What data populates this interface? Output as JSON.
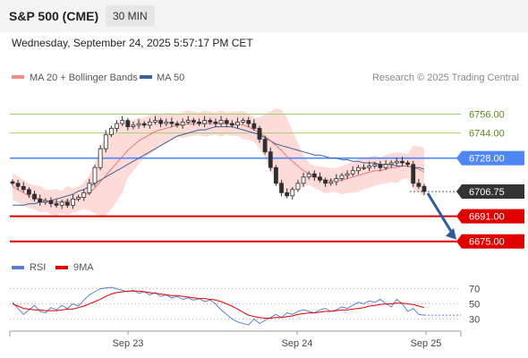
{
  "header": {
    "title": "S&P 500 (CME)",
    "timeframe": "30 MIN"
  },
  "timestamp": "Wednesday, September 24, 2025 5:57:17 PM CET",
  "legend": {
    "items": [
      {
        "label": "MA 20 + Bollinger Bands",
        "color": "#f28b82"
      },
      {
        "label": "MA 50",
        "color": "#3f5f9f"
      }
    ],
    "credit": "Research © 2025 Trading Central"
  },
  "rsi_legend": {
    "items": [
      {
        "label": "RSI",
        "color": "#5b7fd6"
      },
      {
        "label": "9MA",
        "color": "#e00000"
      }
    ]
  },
  "colors": {
    "resistance": "#a6cc6f",
    "pivot": "#4f86f7",
    "support": "#e00000",
    "arrow": "#2f5d9a",
    "candle": "#2f2f2f",
    "band_fill": "#fbd2d0"
  },
  "chart_data": [
    {
      "type": "line",
      "title": "",
      "x_ticks": [
        "Sep 23",
        "Sep 24",
        "Sep 25"
      ],
      "y_range": [
        6668,
        6766
      ],
      "levels": [
        {
          "value": 6756.0,
          "label": "6756.00",
          "kind": "resistance"
        },
        {
          "value": 6744.0,
          "label": "6744.00",
          "kind": "resistance"
        },
        {
          "value": 6728.0,
          "label": "6728.00",
          "kind": "pivot"
        },
        {
          "value": 6706.75,
          "label": "6706.75",
          "kind": "last"
        },
        {
          "value": 6691.0,
          "label": "6691.00",
          "kind": "support"
        },
        {
          "value": 6675.0,
          "label": "6675.00",
          "kind": "support"
        }
      ],
      "last_price": 6706.75,
      "forecast_target": 6675.0,
      "series": [
        {
          "name": "Price",
          "values": [
            6712,
            6710,
            6708,
            6705,
            6702,
            6700,
            6701,
            6699,
            6698,
            6700,
            6698,
            6702,
            6703,
            6706,
            6712,
            6722,
            6734,
            6743,
            6747,
            6750,
            6752,
            6748,
            6749,
            6750,
            6749,
            6751,
            6752,
            6750,
            6751,
            6750,
            6749,
            6751,
            6752,
            6751,
            6750,
            6752,
            6751,
            6750,
            6752,
            6750,
            6749,
            6751,
            6752,
            6750,
            6747,
            6740,
            6732,
            6722,
            6712,
            6706,
            6704,
            6708,
            6712,
            6716,
            6718,
            6716,
            6714,
            6712,
            6713,
            6715,
            6717,
            6718,
            6720,
            6722,
            6722,
            6723,
            6724,
            6722,
            6724,
            6725,
            6726,
            6725,
            6724,
            6712,
            6710,
            6706.75
          ]
        },
        {
          "name": "MA 20",
          "values": [
            6710,
            6708,
            6706,
            6704,
            6703,
            6702,
            6701,
            6700,
            6700,
            6700,
            6701,
            6701,
            6702,
            6704,
            6706,
            6709,
            6713,
            6717,
            6721,
            6725,
            6729,
            6733,
            6736,
            6739,
            6741,
            6743,
            6745,
            6746,
            6747,
            6748,
            6749,
            6749,
            6750,
            6750,
            6750,
            6750,
            6750,
            6750,
            6750,
            6750,
            6750,
            6750,
            6749,
            6748,
            6746,
            6744,
            6742,
            6739,
            6736,
            6733,
            6729,
            6726,
            6723,
            6720,
            6718,
            6716,
            6715,
            6714,
            6714,
            6714,
            6714,
            6715,
            6716,
            6717,
            6718,
            6719,
            6720,
            6720,
            6721,
            6722,
            6722,
            6723,
            6723,
            6722,
            6721,
            6719
          ]
        },
        {
          "name": "MA 50",
          "values": [
            6698,
            6698,
            6698,
            6699,
            6699,
            6700,
            6700,
            6701,
            6702,
            6703,
            6704,
            6705,
            6707,
            6708,
            6710,
            6712,
            6714,
            6716,
            6718,
            6720,
            6722,
            6724,
            6726,
            6728,
            6730,
            6732,
            6734,
            6736,
            6738,
            6740,
            6742,
            6743,
            6744,
            6745,
            6746,
            6746,
            6747,
            6748,
            6748,
            6748,
            6748,
            6747,
            6746,
            6745,
            6744,
            6743,
            6741,
            6739,
            6737,
            6736,
            6735,
            6734,
            6733,
            6732,
            6731,
            6730,
            6730,
            6729,
            6728,
            6728,
            6727,
            6727,
            6726,
            6726,
            6725,
            6725,
            6725,
            6724,
            6724,
            6724,
            6723,
            6723,
            6723,
            6722,
            6722,
            6721
          ]
        }
      ]
    },
    {
      "type": "line",
      "title": "",
      "y_ticks": [
        70,
        50,
        30
      ],
      "y_range": [
        15,
        85
      ],
      "series": [
        {
          "name": "RSI",
          "values": [
            52,
            44,
            36,
            42,
            48,
            40,
            38,
            45,
            42,
            48,
            44,
            50,
            47,
            55,
            62,
            66,
            70,
            71,
            72,
            70,
            68,
            66,
            68,
            64,
            66,
            62,
            65,
            60,
            62,
            58,
            60,
            56,
            58,
            55,
            57,
            53,
            55,
            50,
            42,
            36,
            30,
            26,
            24,
            22,
            30,
            24,
            28,
            32,
            36,
            32,
            38,
            36,
            40,
            42,
            40,
            38,
            42,
            44,
            40,
            42,
            46,
            44,
            48,
            52,
            50,
            54,
            52,
            56,
            50,
            46,
            56,
            50,
            40,
            44,
            36,
            35
          ]
        },
        {
          "name": "9MA",
          "values": [
            50,
            47,
            44,
            43,
            42,
            42,
            41,
            41,
            41,
            42,
            43,
            43,
            45,
            47,
            50,
            53,
            56,
            60,
            63,
            65,
            66,
            67,
            67,
            67,
            66,
            65,
            64,
            63,
            62,
            61,
            61,
            60,
            59,
            58,
            57,
            57,
            56,
            55,
            53,
            50,
            47,
            43,
            39,
            35,
            33,
            32,
            31,
            31,
            32,
            32,
            33,
            34,
            36,
            37,
            38,
            38,
            39,
            40,
            40,
            41,
            42,
            42,
            43,
            44,
            45,
            47,
            48,
            49,
            50,
            50,
            51,
            51,
            50,
            49,
            47,
            45
          ]
        }
      ]
    }
  ]
}
